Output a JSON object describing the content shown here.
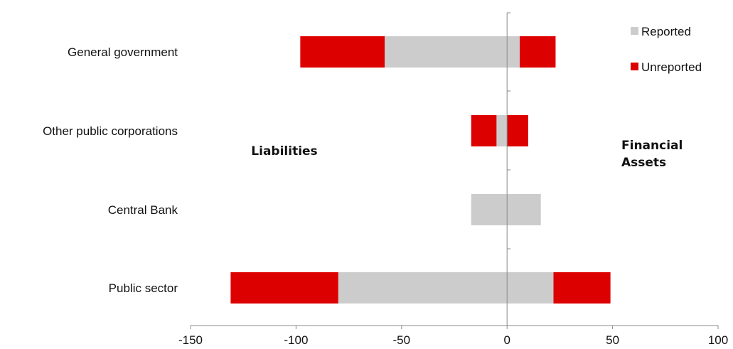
{
  "chart_data": {
    "type": "bar",
    "orientation": "horizontal",
    "stacked": true,
    "categories": [
      "General government",
      "Other public corporations",
      "Central Bank",
      "Public sector"
    ],
    "series": [
      {
        "name": "Reported",
        "color": "#cccccc",
        "values": [
          [
            -58,
            6
          ],
          [
            -5,
            0
          ],
          [
            -17,
            16
          ],
          [
            -80,
            22
          ]
        ]
      },
      {
        "name": "Unreported",
        "color": "#dd0000",
        "values": [
          [
            -40,
            17
          ],
          [
            -12,
            10
          ],
          [
            0,
            0
          ],
          [
            -51,
            27
          ]
        ]
      }
    ],
    "xlim": [
      -150,
      100
    ],
    "xticks": [
      "-150",
      "-100",
      "-50",
      "0",
      "50",
      "100"
    ],
    "xtick_values": [
      -150,
      -100,
      -50,
      0,
      50,
      100
    ],
    "legend": {
      "placement": "top-right",
      "entries": [
        "Reported",
        "Unreported"
      ]
    },
    "annotations": {
      "left": "Liabilities",
      "right_line1": "Financial",
      "right_line2": "Assets"
    },
    "grid": false,
    "title": "",
    "xlabel": "",
    "ylabel": ""
  }
}
